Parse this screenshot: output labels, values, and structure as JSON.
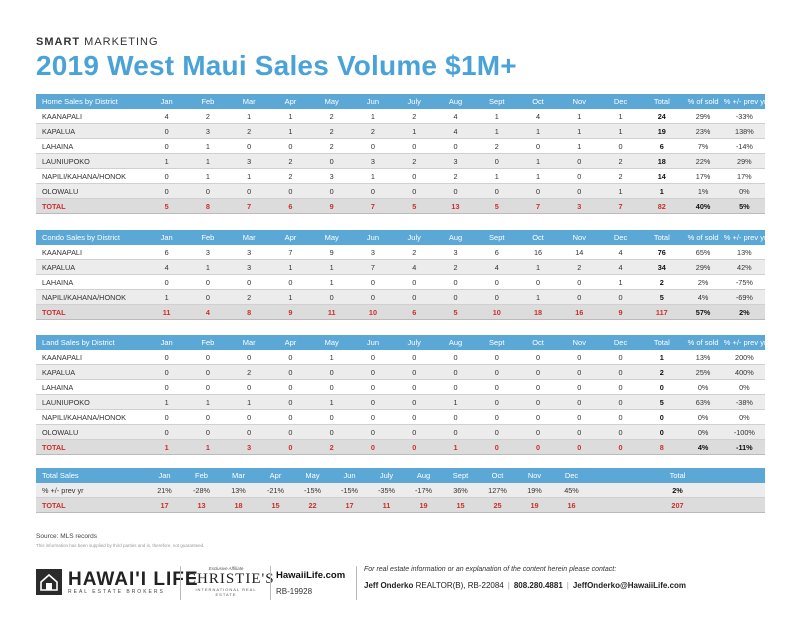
{
  "brand": {
    "bold": "SMART",
    "rest": " MARKETING"
  },
  "title": "2019 West Maui Sales Volume $1M+",
  "months": [
    "Jan",
    "Feb",
    "Mar",
    "Apr",
    "May",
    "Jun",
    "July",
    "Aug",
    "Sept",
    "Oct",
    "Nov",
    "Dec"
  ],
  "home": {
    "header": [
      "Home Sales by District",
      "Jan",
      "Feb",
      "Mar",
      "Apr",
      "May",
      "Jun",
      "July",
      "Aug",
      "Sept",
      "Oct",
      "Nov",
      "Dec",
      "Total",
      "% of sold",
      "% +/- prev yr"
    ],
    "rows": [
      [
        "KAANAPALI",
        "4",
        "2",
        "1",
        "1",
        "2",
        "1",
        "2",
        "4",
        "1",
        "4",
        "1",
        "1",
        "24",
        "29%",
        "-33%"
      ],
      [
        "KAPALUA",
        "0",
        "3",
        "2",
        "1",
        "2",
        "2",
        "1",
        "4",
        "1",
        "1",
        "1",
        "1",
        "19",
        "23%",
        "138%"
      ],
      [
        "LAHAINA",
        "0",
        "1",
        "0",
        "0",
        "2",
        "0",
        "0",
        "0",
        "2",
        "0",
        "1",
        "0",
        "6",
        "7%",
        "-14%"
      ],
      [
        "LAUNIUPOKO",
        "1",
        "1",
        "3",
        "2",
        "0",
        "3",
        "2",
        "3",
        "0",
        "1",
        "0",
        "2",
        "18",
        "22%",
        "29%"
      ],
      [
        "NAPILI/KAHANA/HONOK",
        "0",
        "1",
        "1",
        "2",
        "3",
        "1",
        "0",
        "2",
        "1",
        "1",
        "0",
        "2",
        "14",
        "17%",
        "17%"
      ],
      [
        "OLOWALU",
        "0",
        "0",
        "0",
        "0",
        "0",
        "0",
        "0",
        "0",
        "0",
        "0",
        "0",
        "1",
        "1",
        "1%",
        "0%"
      ]
    ],
    "total": [
      "TOTAL",
      "5",
      "8",
      "7",
      "6",
      "9",
      "7",
      "5",
      "13",
      "5",
      "7",
      "3",
      "7",
      "82",
      "40%",
      "5%"
    ]
  },
  "condo": {
    "header": [
      "Condo Sales by District",
      "Jan",
      "Feb",
      "Mar",
      "Apr",
      "May",
      "Jun",
      "July",
      "Aug",
      "Sept",
      "Oct",
      "Nov",
      "Dec",
      "Total",
      "% of sold",
      "% +/- prev yr"
    ],
    "rows": [
      [
        "KAANAPALI",
        "6",
        "3",
        "3",
        "7",
        "9",
        "3",
        "2",
        "3",
        "6",
        "16",
        "14",
        "4",
        "76",
        "65%",
        "13%"
      ],
      [
        "KAPALUA",
        "4",
        "1",
        "3",
        "1",
        "1",
        "7",
        "4",
        "2",
        "4",
        "1",
        "2",
        "4",
        "34",
        "29%",
        "42%"
      ],
      [
        "LAHAINA",
        "0",
        "0",
        "0",
        "0",
        "1",
        "0",
        "0",
        "0",
        "0",
        "0",
        "0",
        "1",
        "2",
        "2%",
        "-75%"
      ],
      [
        "NAPILI/KAHANA/HONOK",
        "1",
        "0",
        "2",
        "1",
        "0",
        "0",
        "0",
        "0",
        "0",
        "1",
        "0",
        "0",
        "5",
        "4%",
        "-69%"
      ]
    ],
    "total": [
      "TOTAL",
      "11",
      "4",
      "8",
      "9",
      "11",
      "10",
      "6",
      "5",
      "10",
      "18",
      "16",
      "9",
      "117",
      "57%",
      "2%"
    ]
  },
  "land": {
    "header": [
      "Land Sales by District",
      "Jan",
      "Feb",
      "Mar",
      "Apr",
      "May",
      "Jun",
      "July",
      "Aug",
      "Sept",
      "Oct",
      "Nov",
      "Dec",
      "Total",
      "% of sold",
      "% +/- prev yr"
    ],
    "rows": [
      [
        "KAANAPALI",
        "0",
        "0",
        "0",
        "0",
        "1",
        "0",
        "0",
        "0",
        "0",
        "0",
        "0",
        "0",
        "1",
        "13%",
        "200%"
      ],
      [
        "KAPALUA",
        "0",
        "0",
        "2",
        "0",
        "0",
        "0",
        "0",
        "0",
        "0",
        "0",
        "0",
        "0",
        "2",
        "25%",
        "400%"
      ],
      [
        "LAHAINA",
        "0",
        "0",
        "0",
        "0",
        "0",
        "0",
        "0",
        "0",
        "0",
        "0",
        "0",
        "0",
        "0",
        "0%",
        "0%"
      ],
      [
        "LAUNIUPOKO",
        "1",
        "1",
        "1",
        "0",
        "1",
        "0",
        "0",
        "1",
        "0",
        "0",
        "0",
        "0",
        "5",
        "63%",
        "-38%"
      ],
      [
        "NAPILI/KAHANA/HONOK",
        "0",
        "0",
        "0",
        "0",
        "0",
        "0",
        "0",
        "0",
        "0",
        "0",
        "0",
        "0",
        "0",
        "0%",
        "0%"
      ],
      [
        "OLOWALU",
        "0",
        "0",
        "0",
        "0",
        "0",
        "0",
        "0",
        "0",
        "0",
        "0",
        "0",
        "0",
        "0",
        "0%",
        "-100%"
      ]
    ],
    "total": [
      "TOTAL",
      "1",
      "1",
      "3",
      "0",
      "2",
      "0",
      "0",
      "1",
      "0",
      "0",
      "0",
      "0",
      "8",
      "4%",
      "-11%"
    ]
  },
  "totals": {
    "header": [
      "Total Sales",
      "Jan",
      "Feb",
      "Mar",
      "Apr",
      "May",
      "Jun",
      "July",
      "Aug",
      "Sept",
      "Oct",
      "Nov",
      "Dec",
      "Total"
    ],
    "pct_row": [
      "% +/- prev yr",
      "21%",
      "-28%",
      "13%",
      "-21%",
      "-15%",
      "-15%",
      "-35%",
      "-17%",
      "36%",
      "127%",
      "19%",
      "45%",
      "2%"
    ],
    "total_row": [
      "TOTAL",
      "17",
      "13",
      "18",
      "15",
      "22",
      "17",
      "11",
      "19",
      "15",
      "25",
      "19",
      "16",
      "207"
    ]
  },
  "source": "Source: MLS records",
  "disclaimer": "This information has been supplied by third parties and is, therefore, not guaranteed.",
  "footer": {
    "logo_big": "HAWAI'I LIFE",
    "logo_small": "REAL ESTATE BROKERS",
    "aff_top": "Exclusive Affiliate",
    "aff_name": "CHRISTIE'S",
    "aff_bottom": "INTERNATIONAL REAL ESTATE",
    "website": "HawaiiLife.com",
    "rb": "RB-19928",
    "contact_intro": "For real estate information or an explanation of the content herein please contact:",
    "agent_name": "Jeff Onderko",
    "agent_title": "REALTOR(B), RB-22084",
    "phone": "808.280.4881",
    "email": "JeffOnderko@HawaiiLife.com"
  }
}
